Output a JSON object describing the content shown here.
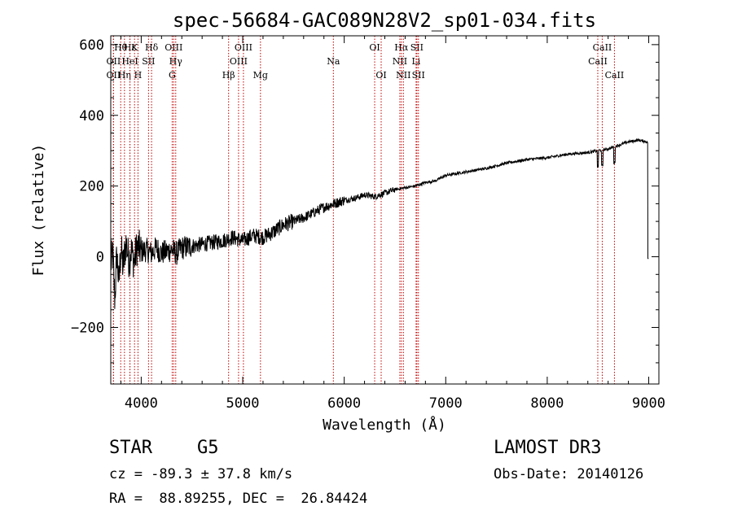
{
  "chart_data": {
    "type": "line",
    "title": "spec-56684-GAC089N28V2_sp01-034.fits",
    "xlabel": "Wavelength (Å)",
    "ylabel": "Flux (relative)",
    "xlim": [
      3700,
      9100
    ],
    "ylim": [
      -360,
      625
    ],
    "xticks": [
      4000,
      5000,
      6000,
      7000,
      8000,
      9000
    ],
    "xtick_labels": [
      "4000",
      "5000",
      "6000",
      "7000",
      "8000",
      "9000"
    ],
    "yticks": [
      -200,
      0,
      200,
      400,
      600
    ],
    "ytick_labels": [
      "−200",
      "0",
      "200",
      "400",
      "600"
    ],
    "series": [
      {
        "name": "flux",
        "x": [
          3700,
          3720,
          3740,
          3760,
          3780,
          3800,
          3820,
          3850,
          3880,
          3900,
          3930,
          3960,
          4000,
          4050,
          4100,
          4150,
          4200,
          4250,
          4300,
          4350,
          4400,
          4500,
          4600,
          4700,
          4800,
          4900,
          5000,
          5100,
          5200,
          5300,
          5400,
          5500,
          5600,
          5700,
          5800,
          5900,
          6000,
          6100,
          6200,
          6300,
          6400,
          6500,
          6600,
          6700,
          6800,
          6900,
          7000,
          7200,
          7400,
          7600,
          7800,
          8000,
          8200,
          8400,
          8500,
          8600,
          8700,
          8800,
          8900,
          8980,
          9000
        ],
        "y": [
          -20,
          5,
          -120,
          10,
          -80,
          30,
          -30,
          40,
          -10,
          20,
          -15,
          30,
          15,
          20,
          10,
          25,
          10,
          15,
          20,
          10,
          25,
          30,
          35,
          40,
          45,
          55,
          45,
          60,
          55,
          70,
          90,
          100,
          110,
          125,
          140,
          150,
          160,
          165,
          175,
          170,
          180,
          190,
          195,
          200,
          210,
          215,
          230,
          240,
          250,
          265,
          275,
          280,
          290,
          295,
          300,
          305,
          315,
          325,
          330,
          325,
          320
        ]
      }
    ],
    "spectral_lines": [
      {
        "label": "OII",
        "wavelength": 3727,
        "row": 2
      },
      {
        "label": "Hθ",
        "wavelength": 3798,
        "row": 0
      },
      {
        "label": "OII",
        "wavelength": 3727,
        "row": 1
      },
      {
        "label": "Hη",
        "wavelength": 3835,
        "row": 2
      },
      {
        "label": "Hε",
        "wavelength": 3889,
        "row": 0
      },
      {
        "label": "HeI",
        "wavelength": 3889,
        "row": 1
      },
      {
        "label": "K",
        "wavelength": 3934,
        "row": 0
      },
      {
        "label": "H",
        "wavelength": 3968,
        "row": 2
      },
      {
        "label": "SII",
        "wavelength": 4072,
        "row": 1
      },
      {
        "label": "Hδ",
        "wavelength": 4102,
        "row": 0
      },
      {
        "label": "OIII",
        "wavelength": 4320,
        "row": 0
      },
      {
        "label": "Hγ",
        "wavelength": 4340,
        "row": 1
      },
      {
        "label": "G",
        "wavelength": 4305,
        "row": 2
      },
      {
        "label": "Hβ",
        "wavelength": 4861,
        "row": 2
      },
      {
        "label": "OIII",
        "wavelength": 4959,
        "row": 1
      },
      {
        "label": "OIII",
        "wavelength": 5007,
        "row": 0
      },
      {
        "label": "Mg",
        "wavelength": 5175,
        "row": 2
      },
      {
        "label": "Na",
        "wavelength": 5893,
        "row": 1
      },
      {
        "label": "OI",
        "wavelength": 6300,
        "row": 0
      },
      {
        "label": "OI",
        "wavelength": 6364,
        "row": 2
      },
      {
        "label": "Hα",
        "wavelength": 6563,
        "row": 0
      },
      {
        "label": "NII",
        "wavelength": 6548,
        "row": 1
      },
      {
        "label": "NII",
        "wavelength": 6583,
        "row": 2
      },
      {
        "label": "SII",
        "wavelength": 6716,
        "row": 0
      },
      {
        "label": "Li",
        "wavelength": 6708,
        "row": 1
      },
      {
        "label": "SII",
        "wavelength": 6731,
        "row": 2
      },
      {
        "label": "CaII",
        "wavelength": 8542,
        "row": 0
      },
      {
        "label": "CaII",
        "wavelength": 8498,
        "row": 1
      },
      {
        "label": "CaII",
        "wavelength": 8662,
        "row": 2
      }
    ]
  },
  "info": {
    "object_class": "STAR",
    "subclass": "G5",
    "survey": "LAMOST DR3",
    "redshift": "cz = -89.3 ± 37.8 km/s",
    "obs_date": "Obs-Date: 20140126",
    "coords": "RA =  88.89255, DEC =  26.84424"
  }
}
